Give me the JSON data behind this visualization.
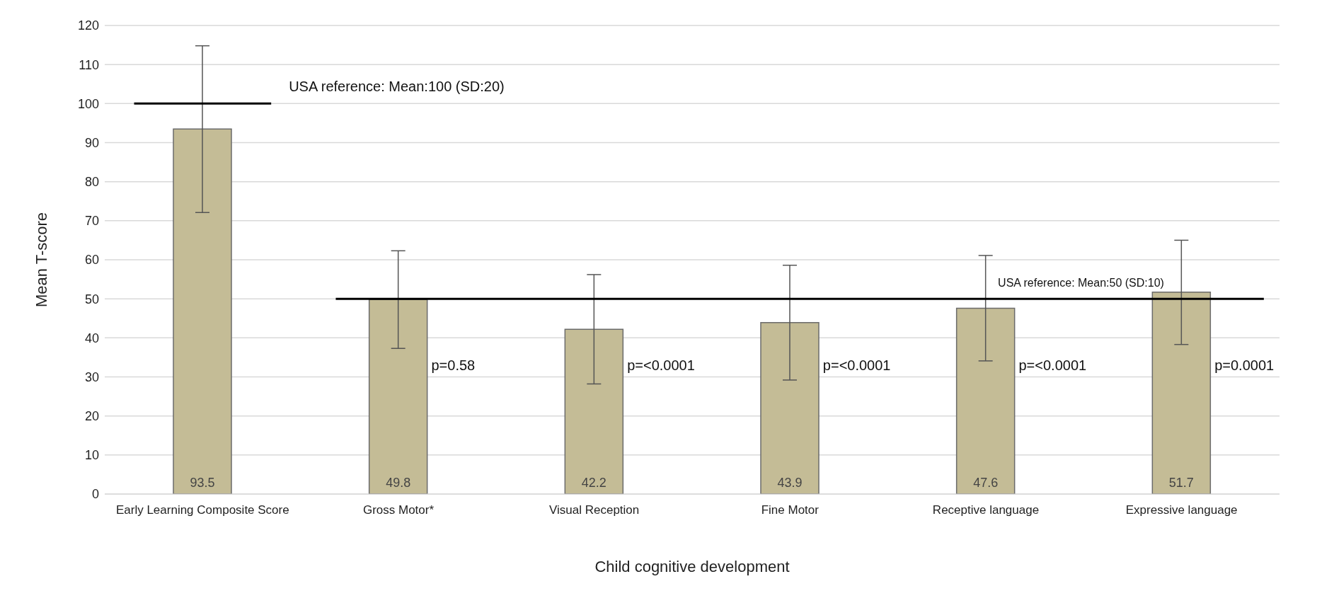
{
  "chart_data": {
    "type": "bar",
    "xlabel": "Child cognitive development",
    "ylabel": "Mean T-score",
    "categories": [
      "Early Learning Composite Score",
      "Gross Motor*",
      "Visual Reception",
      "Fine Motor",
      "Receptive language",
      "Expressive language"
    ],
    "values": [
      93.5,
      49.8,
      42.2,
      43.9,
      47.6,
      51.7
    ],
    "errors": [
      [
        72.1,
        114.8
      ],
      [
        37.3,
        62.3
      ],
      [
        28.2,
        56.2
      ],
      [
        29.2,
        58.6
      ],
      [
        34.1,
        61.1
      ],
      [
        38.3,
        65.0
      ]
    ],
    "color": "#c4bc96",
    "data_labels": true,
    "ylim": [
      0,
      120
    ],
    "yticks": [
      0,
      10,
      20,
      30,
      40,
      50,
      60,
      70,
      80,
      90,
      100,
      110,
      120
    ],
    "grid": "y",
    "legend": false,
    "ref_lines": [
      {
        "axis": "y",
        "value": 100,
        "label": "USA reference: Mean:100 (SD:20)",
        "color": "#000000"
      },
      {
        "axis": "y",
        "value": 50,
        "label": "USA reference: Mean:50 (SD:10)",
        "color": "#000000"
      }
    ],
    "annotations": [
      "p=0.58",
      "p=<0.0001",
      "p=<0.0001",
      "p=<0.0001",
      "p=0.0001"
    ]
  }
}
